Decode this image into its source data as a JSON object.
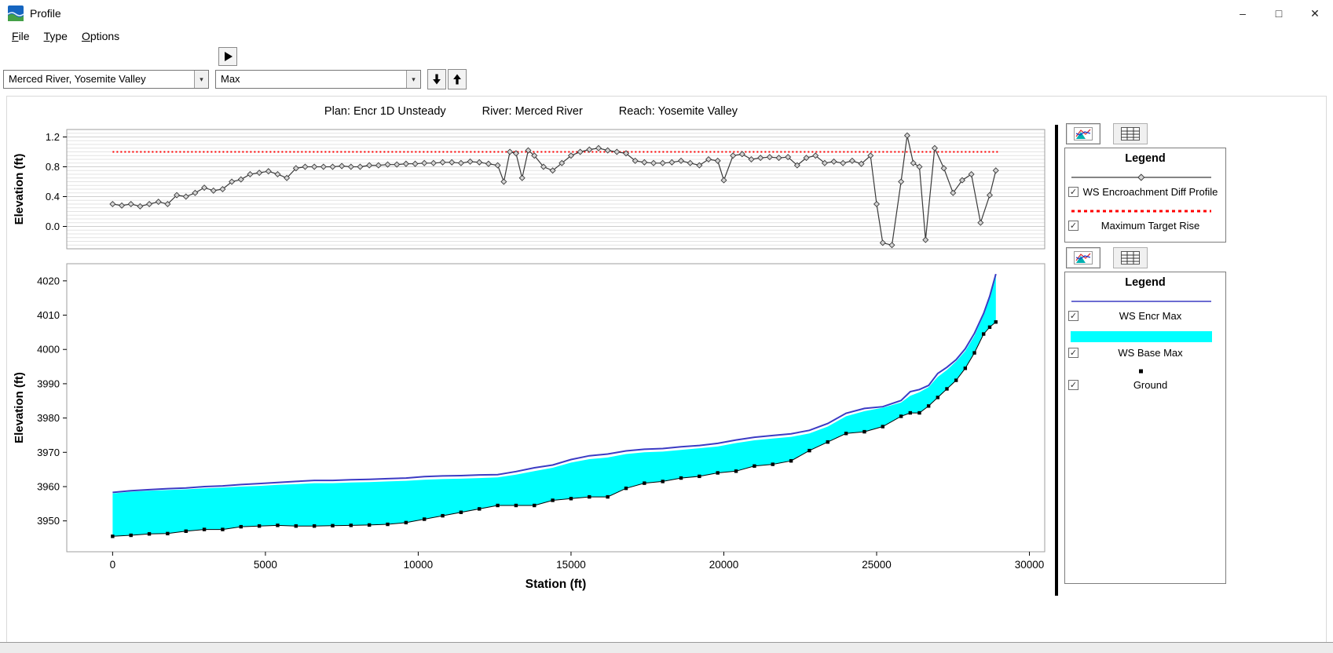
{
  "window": {
    "title": "Profile"
  },
  "titlebar_controls": {
    "minimize": "–",
    "maximize": "□",
    "close": "✕"
  },
  "menu": {
    "items": [
      {
        "label": "File"
      },
      {
        "label": "Type"
      },
      {
        "label": "Options"
      }
    ]
  },
  "toolbar": {
    "river_reach_value": "Merced River, Yosemite Valley",
    "profile_value": "Max"
  },
  "plot_header": {
    "plan": "Plan: Encr 1D Unsteady",
    "river": "River: Merced River",
    "reach": "Reach: Yosemite Valley"
  },
  "legend_top": {
    "title": "Legend",
    "items": [
      {
        "label": "WS Encroachment Diff Profile",
        "checked": true,
        "sample": "line-diamond"
      },
      {
        "label": "Maximum Target Rise",
        "checked": true,
        "sample": "red-dashed"
      }
    ]
  },
  "legend_bottom": {
    "title": "Legend",
    "items": [
      {
        "label": "WS Encr Max",
        "checked": true,
        "sample": "blue-line"
      },
      {
        "label": "WS Base Max",
        "checked": true,
        "sample": "cyan-fill"
      },
      {
        "label": "Ground",
        "checked": true,
        "sample": "black-square"
      }
    ]
  },
  "colors": {
    "cyan_fill": "#00FFFF",
    "encr_line": "#3B3BC4",
    "ground": "#000000",
    "diff_line": "#3A3A3A",
    "diff_marker_fill": "#D4D4D4",
    "target_rise": "#FF0000"
  },
  "chart_data": [
    {
      "type": "line",
      "title": "WS Encroachment Diff Profile",
      "xlabel": "",
      "ylabel": "Elevation (ft)",
      "xlim": [
        -1500,
        30500
      ],
      "ylim": [
        -0.3,
        1.3
      ],
      "yticks": [
        0.0,
        0.4,
        0.8,
        1.2
      ],
      "minor_grid_step": 0.05,
      "grid": true,
      "series": [
        {
          "name": "WS Encroachment Diff Profile",
          "type": "line",
          "marker": "diamond",
          "color": "#3A3A3A",
          "x": [
            0,
            300,
            600,
            900,
            1200,
            1500,
            1800,
            2100,
            2400,
            2700,
            3000,
            3300,
            3600,
            3900,
            4200,
            4500,
            4800,
            5100,
            5400,
            5700,
            6000,
            6300,
            6600,
            6900,
            7200,
            7500,
            7800,
            8100,
            8400,
            8700,
            9000,
            9300,
            9600,
            9900,
            10200,
            10500,
            10800,
            11100,
            11400,
            11700,
            12000,
            12300,
            12600,
            12800,
            13000,
            13200,
            13400,
            13600,
            13800,
            14100,
            14400,
            14700,
            15000,
            15300,
            15600,
            15900,
            16200,
            16500,
            16800,
            17100,
            17400,
            17700,
            18000,
            18300,
            18600,
            18900,
            19200,
            19500,
            19800,
            20000,
            20300,
            20600,
            20900,
            21200,
            21500,
            21800,
            22100,
            22400,
            22700,
            23000,
            23300,
            23600,
            23900,
            24200,
            24500,
            24800,
            25000,
            25200,
            25500,
            25800,
            26000,
            26200,
            26400,
            26600,
            26900,
            27200,
            27500,
            27800,
            28100,
            28400,
            28700,
            28900
          ],
          "y": [
            0.3,
            0.28,
            0.3,
            0.27,
            0.3,
            0.33,
            0.3,
            0.42,
            0.4,
            0.45,
            0.52,
            0.48,
            0.5,
            0.6,
            0.63,
            0.7,
            0.72,
            0.74,
            0.7,
            0.65,
            0.78,
            0.8,
            0.8,
            0.8,
            0.8,
            0.81,
            0.8,
            0.8,
            0.82,
            0.82,
            0.83,
            0.83,
            0.84,
            0.84,
            0.85,
            0.85,
            0.86,
            0.86,
            0.85,
            0.87,
            0.86,
            0.84,
            0.82,
            0.6,
            1.0,
            0.98,
            0.65,
            1.02,
            0.95,
            0.8,
            0.75,
            0.85,
            0.95,
            1.0,
            1.03,
            1.05,
            1.02,
            1.0,
            0.98,
            0.88,
            0.86,
            0.85,
            0.85,
            0.86,
            0.88,
            0.85,
            0.82,
            0.9,
            0.88,
            0.62,
            0.95,
            0.97,
            0.9,
            0.92,
            0.93,
            0.92,
            0.93,
            0.82,
            0.92,
            0.95,
            0.85,
            0.87,
            0.85,
            0.88,
            0.84,
            0.95,
            0.3,
            -0.22,
            -0.25,
            0.6,
            1.22,
            0.85,
            0.8,
            -0.18,
            1.05,
            0.78,
            0.45,
            0.62,
            0.7,
            0.05,
            0.42,
            0.75
          ]
        },
        {
          "name": "Maximum Target Rise",
          "type": "line",
          "style": "dotted",
          "color": "#FF0000",
          "x": [
            0,
            29000
          ],
          "y": [
            1.0,
            1.0
          ]
        }
      ]
    },
    {
      "type": "area",
      "title": "Profile",
      "xlabel": "Station (ft)",
      "ylabel": "Elevation (ft)",
      "xlim": [
        -1500,
        30500
      ],
      "ylim": [
        3941,
        4025
      ],
      "xticks": [
        0,
        5000,
        10000,
        15000,
        20000,
        25000,
        30000
      ],
      "yticks": [
        3950,
        3960,
        3970,
        3980,
        3990,
        4000,
        4010,
        4020
      ],
      "grid": false,
      "x": [
        0,
        600,
        1200,
        1800,
        2400,
        3000,
        3600,
        4200,
        4800,
        5400,
        6000,
        6600,
        7200,
        7800,
        8400,
        9000,
        9600,
        10200,
        10800,
        11400,
        12000,
        12600,
        13200,
        13800,
        14400,
        15000,
        15600,
        16200,
        16800,
        17400,
        18000,
        18600,
        19200,
        19800,
        20400,
        21000,
        21600,
        22200,
        22800,
        23400,
        24000,
        24600,
        25200,
        25800,
        26100,
        26400,
        26700,
        27000,
        27300,
        27600,
        27900,
        28200,
        28500,
        28700,
        28900
      ],
      "series": [
        {
          "name": "WS Encr Max",
          "type": "line",
          "color": "#3B3BC4",
          "values": [
            3958.3,
            3958.8,
            3959.1,
            3959.4,
            3959.6,
            3960,
            3960.2,
            3960.6,
            3960.9,
            3961.2,
            3961.5,
            3961.8,
            3961.8,
            3962,
            3962.1,
            3962.3,
            3962.5,
            3962.9,
            3963.1,
            3963.2,
            3963.4,
            3963.5,
            3964.4,
            3965.5,
            3966.3,
            3967.9,
            3969,
            3969.5,
            3970.4,
            3970.9,
            3971.1,
            3971.6,
            3972,
            3972.6,
            3973.6,
            3974.4,
            3974.9,
            3975.4,
            3976.4,
            3978.4,
            3981.4,
            3982.8,
            3983.3,
            3985.1,
            3987.7,
            3988.3,
            3989.5,
            3993,
            3994.8,
            3997,
            4000.2,
            4004.7,
            4010.5,
            4015.5,
            4022
          ]
        },
        {
          "name": "WS Base Max",
          "type": "band-fill-to-ground",
          "color": "#00FFFF",
          "values": [
            3958,
            3958.5,
            3958.8,
            3959,
            3959.2,
            3959.5,
            3959.7,
            3960,
            3960.2,
            3960.5,
            3960.7,
            3961,
            3961,
            3961.2,
            3961.3,
            3961.5,
            3961.7,
            3962,
            3962.2,
            3962.3,
            3962.5,
            3962.7,
            3963.5,
            3964.5,
            3965.5,
            3967,
            3968,
            3968.5,
            3969.5,
            3970,
            3970.2,
            3970.7,
            3971.2,
            3971.7,
            3972.7,
            3973.5,
            3974,
            3974.5,
            3975.5,
            3977.5,
            3980.5,
            3982,
            3983,
            3984.5,
            3986.5,
            3987.5,
            3989,
            3992,
            3994,
            3996.5,
            3999.5,
            4004,
            4010,
            4015,
            4021.5
          ]
        },
        {
          "name": "Ground",
          "type": "line",
          "marker": "square",
          "color": "#000000",
          "values": [
            3945.5,
            3945.8,
            3946.2,
            3946.3,
            3947,
            3947.5,
            3947.5,
            3948.3,
            3948.5,
            3948.7,
            3948.5,
            3948.5,
            3948.6,
            3948.7,
            3948.8,
            3949,
            3949.5,
            3950.5,
            3951.5,
            3952.5,
            3953.5,
            3954.5,
            3954.5,
            3954.5,
            3956,
            3956.5,
            3957,
            3957,
            3959.5,
            3961,
            3961.5,
            3962.5,
            3963,
            3964,
            3964.5,
            3966,
            3966.5,
            3967.5,
            3970.5,
            3973,
            3975.5,
            3976,
            3977.5,
            3980.5,
            3981.5,
            3981.5,
            3983.5,
            3986,
            3988.5,
            3991,
            3994.5,
            3999,
            4004.5,
            4006.5,
            4008
          ]
        }
      ]
    }
  ]
}
